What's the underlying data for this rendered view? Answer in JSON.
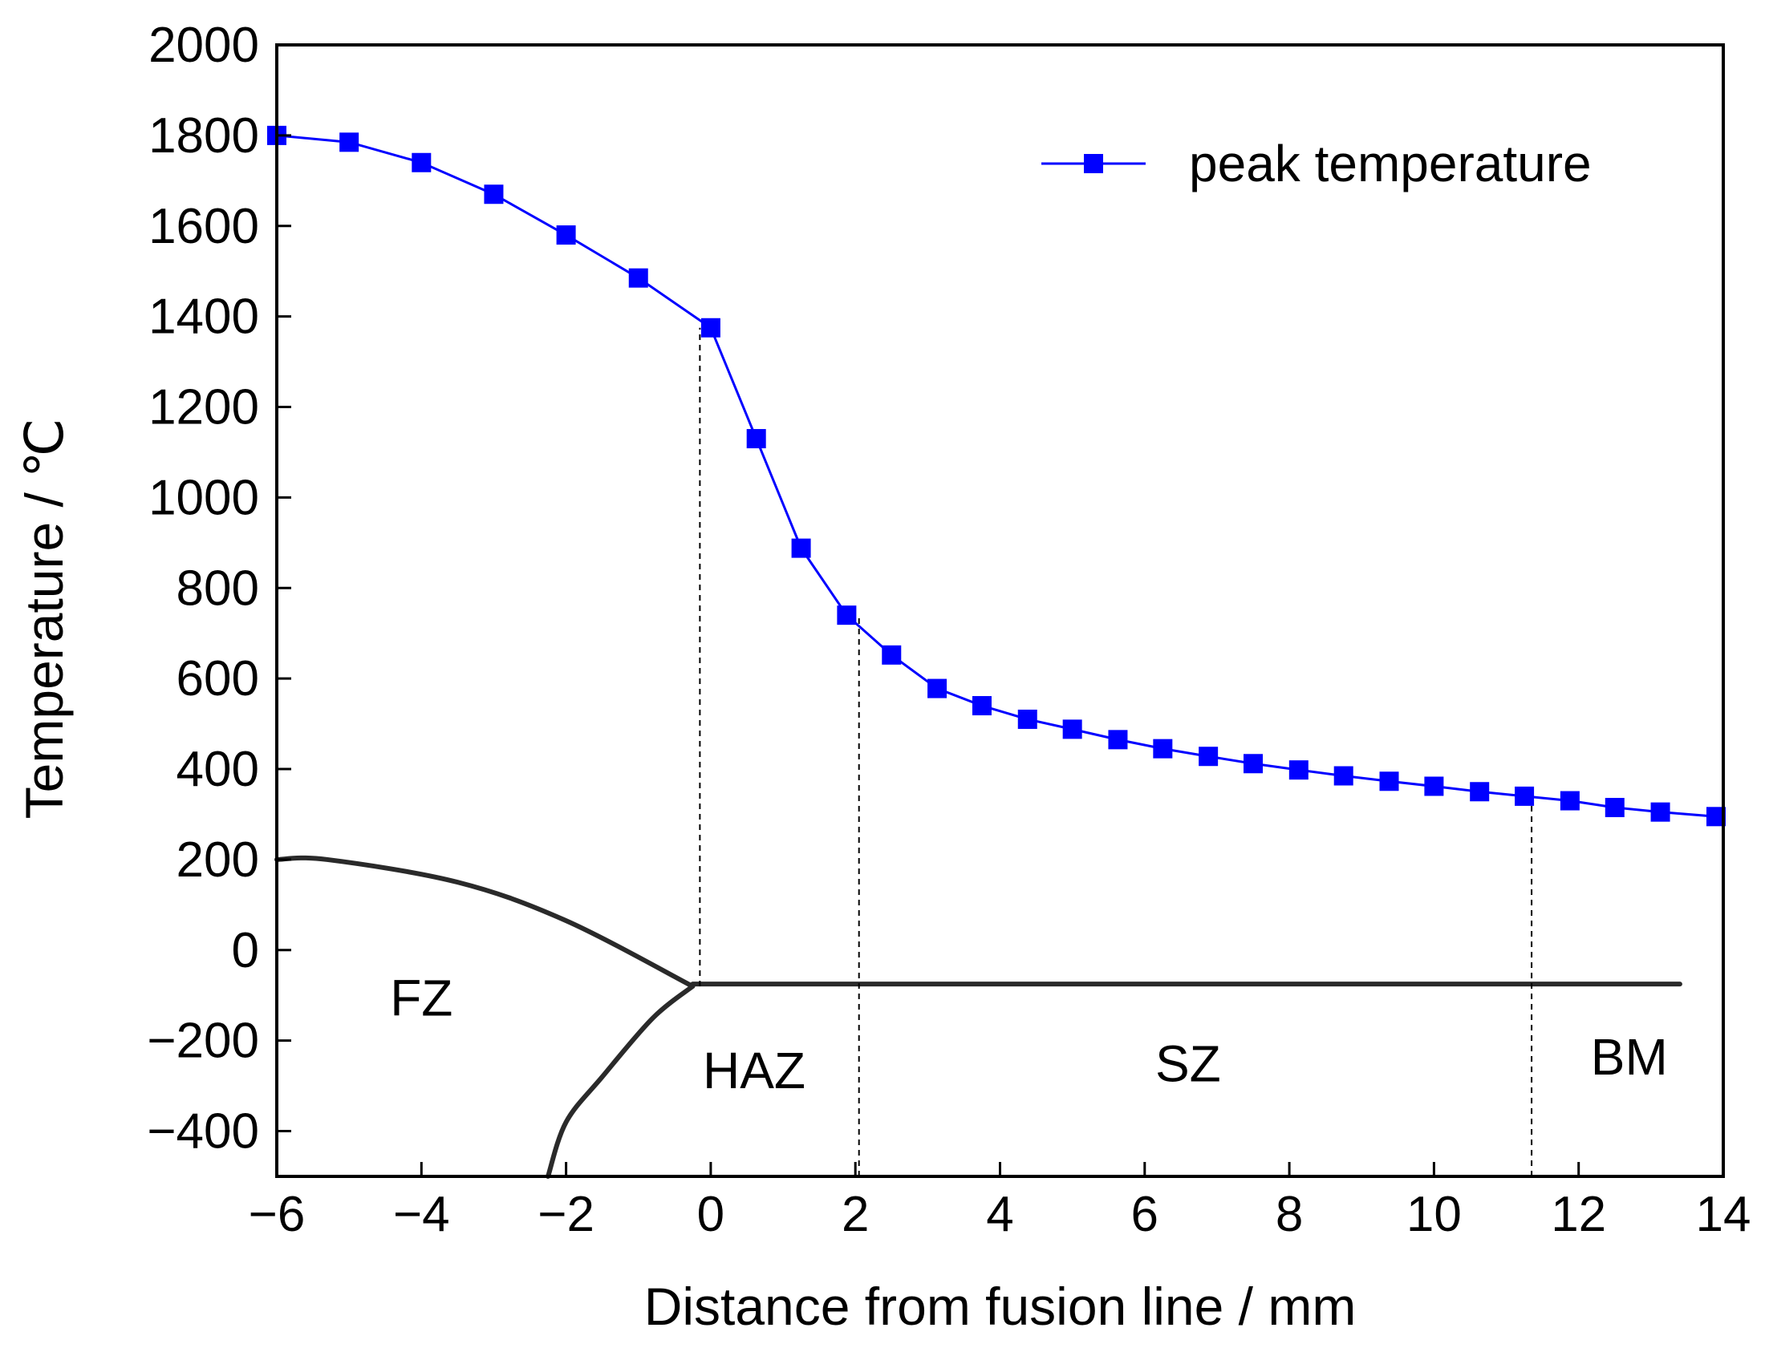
{
  "chart_data": {
    "type": "line",
    "title": "",
    "xlabel": "Distance from fusion line / mm",
    "ylabel": "Temperature / ℃",
    "xlim": [
      -6,
      14
    ],
    "ylim": [
      -500,
      2000
    ],
    "xticks": [
      -6,
      -4,
      -2,
      0,
      2,
      4,
      6,
      8,
      10,
      12,
      14
    ],
    "xtick_labels": [
      "−6",
      "−4",
      "−2",
      "0",
      "2",
      "4",
      "6",
      "8",
      "10",
      "12",
      "14"
    ],
    "yticks": [
      -400,
      -200,
      0,
      200,
      400,
      600,
      800,
      1000,
      1200,
      1400,
      1600,
      1800,
      2000
    ],
    "ytick_labels": [
      "−400",
      "−200",
      "0",
      "200",
      "400",
      "600",
      "800",
      "1000",
      "1200",
      "1400",
      "1600",
      "1800",
      "2000"
    ],
    "grid": false,
    "legend": {
      "position": "top-right",
      "entries": [
        "peak temperature"
      ]
    },
    "series": [
      {
        "name": "peak temperature",
        "color": "#0000ff",
        "marker": "square",
        "x": [
          -6,
          -5,
          -4,
          -3,
          -2,
          -1,
          0,
          0.63,
          1.25,
          1.88,
          2.5,
          3.13,
          3.75,
          4.38,
          5.0,
          5.63,
          6.25,
          6.88,
          7.5,
          8.13,
          8.75,
          9.38,
          10.0,
          10.63,
          11.25,
          11.88,
          12.5,
          13.13,
          13.9
        ],
        "y": [
          1800,
          1785,
          1740,
          1670,
          1580,
          1485,
          1375,
          1130,
          888,
          740,
          652,
          578,
          540,
          510,
          488,
          465,
          445,
          428,
          412,
          398,
          385,
          373,
          362,
          350,
          340,
          330,
          315,
          305,
          295
        ]
      }
    ],
    "reference_lines": [
      {
        "type": "vertical-dashed",
        "x": -0.15,
        "from_y": -80,
        "to_y": 1375
      },
      {
        "type": "vertical-dashed",
        "x": 2.05,
        "from_y": -500,
        "to_y": 735
      },
      {
        "type": "vertical-dashed",
        "x": 11.35,
        "from_y": -500,
        "to_y": 338
      }
    ],
    "boundary_curves": [
      {
        "name": "fusion-boundary-upper",
        "points": [
          [
            -6,
            200
          ],
          [
            -5.3,
            200
          ],
          [
            -3.5,
            150
          ],
          [
            -2,
            65
          ],
          [
            -0.25,
            -80
          ]
        ]
      },
      {
        "name": "fusion-boundary-lower",
        "points": [
          [
            -0.25,
            -80
          ],
          [
            -0.8,
            -150
          ],
          [
            -1.5,
            -280
          ],
          [
            -2,
            -380
          ],
          [
            -2.25,
            -500
          ]
        ]
      },
      {
        "name": "zone-line",
        "points": [
          [
            -0.25,
            -75
          ],
          [
            13.4,
            -75
          ]
        ]
      }
    ],
    "annotations": [
      {
        "text": "FZ",
        "x": -4.0,
        "y": -145
      },
      {
        "text": "HAZ",
        "x": 0.6,
        "y": -305
      },
      {
        "text": "SZ",
        "x": 6.6,
        "y": -290
      },
      {
        "text": "BM",
        "x": 12.7,
        "y": -275
      }
    ]
  }
}
